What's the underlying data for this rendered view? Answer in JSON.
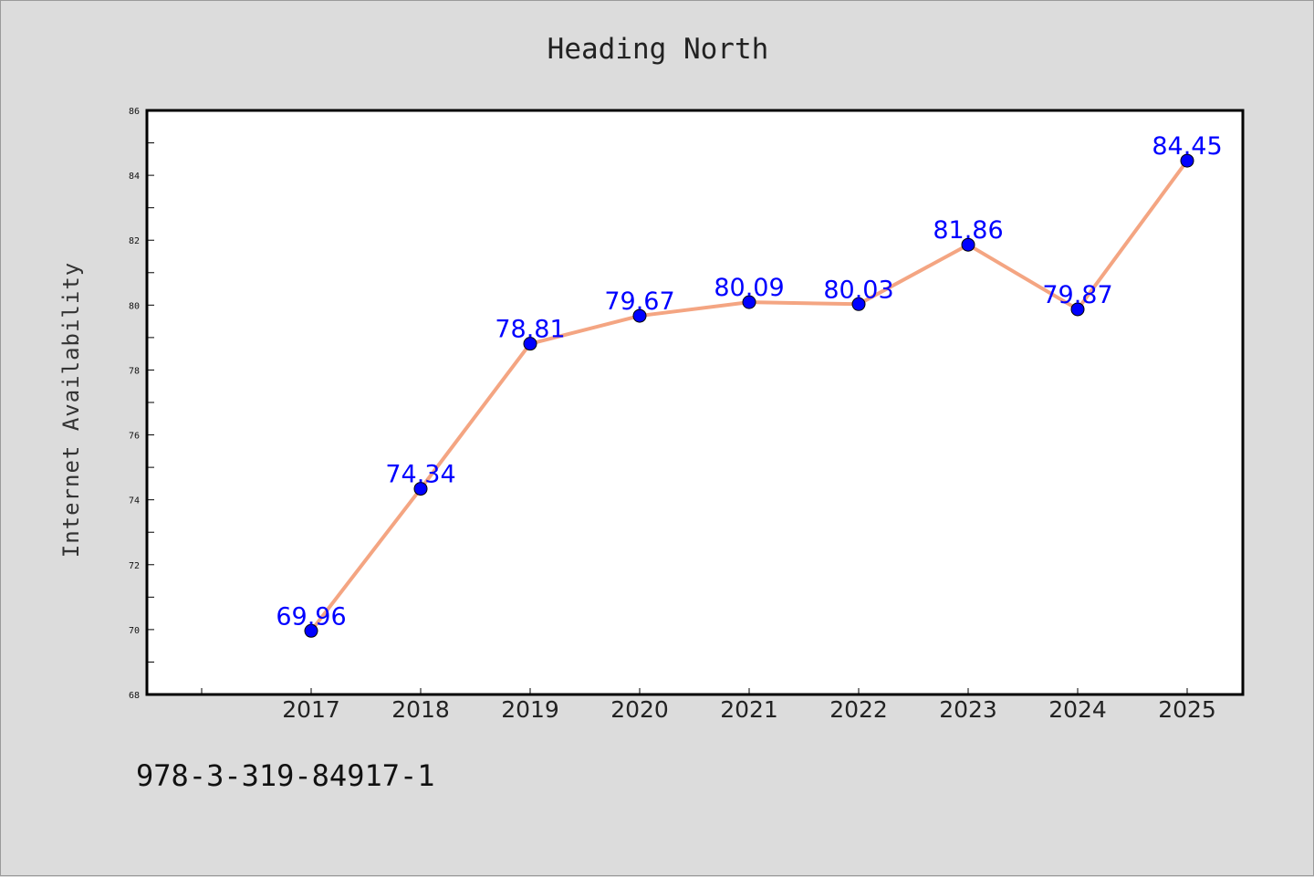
{
  "title": "Heading North",
  "footer_text": "978-3-319-84917-1",
  "chart_data": {
    "type": "line",
    "title": "Heading North",
    "xlabel": "",
    "ylabel": "Internet Availability",
    "categories": [
      "2017",
      "2018",
      "2019",
      "2020",
      "2021",
      "2022",
      "2023",
      "2024",
      "2025"
    ],
    "series": [
      {
        "values": [
          69.96,
          74.34,
          78.81,
          79.67,
          80.09,
          80.03,
          81.86,
          79.87,
          84.45
        ],
        "data_labels": [
          "69.96",
          "74.34",
          "78.81",
          "79.67",
          "80.09",
          "80.03",
          "81.86",
          "79.87",
          "84.45"
        ]
      }
    ],
    "ylim": [
      68,
      86
    ],
    "y_ticks": [
      "68",
      "70",
      "72",
      "74",
      "76",
      "78",
      "80",
      "82",
      "84",
      "86"
    ],
    "grid": false,
    "line_color": "#f4a582",
    "marker_color": "#0000ff",
    "data_label_color": "#0000ff",
    "plot_background": "#ffffff",
    "figure_background": "#dcdcdc"
  }
}
